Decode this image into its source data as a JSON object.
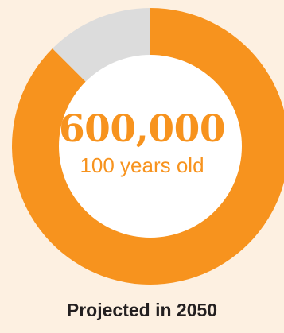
{
  "chart_data": {
    "type": "pie",
    "style": "donut",
    "center_value": "600,000",
    "center_label": "100 years old",
    "caption": "Projected in 2050",
    "slices": [
      {
        "value": 87.5,
        "color": "#f7931e"
      },
      {
        "value": 12.5,
        "color": "#dcdcdc"
      }
    ]
  },
  "colors": {
    "background": "#fdf0e1",
    "accent": "#f7931e",
    "remainder": "#dcdcdc",
    "hole": "#ffffff",
    "caption": "#231f20"
  }
}
